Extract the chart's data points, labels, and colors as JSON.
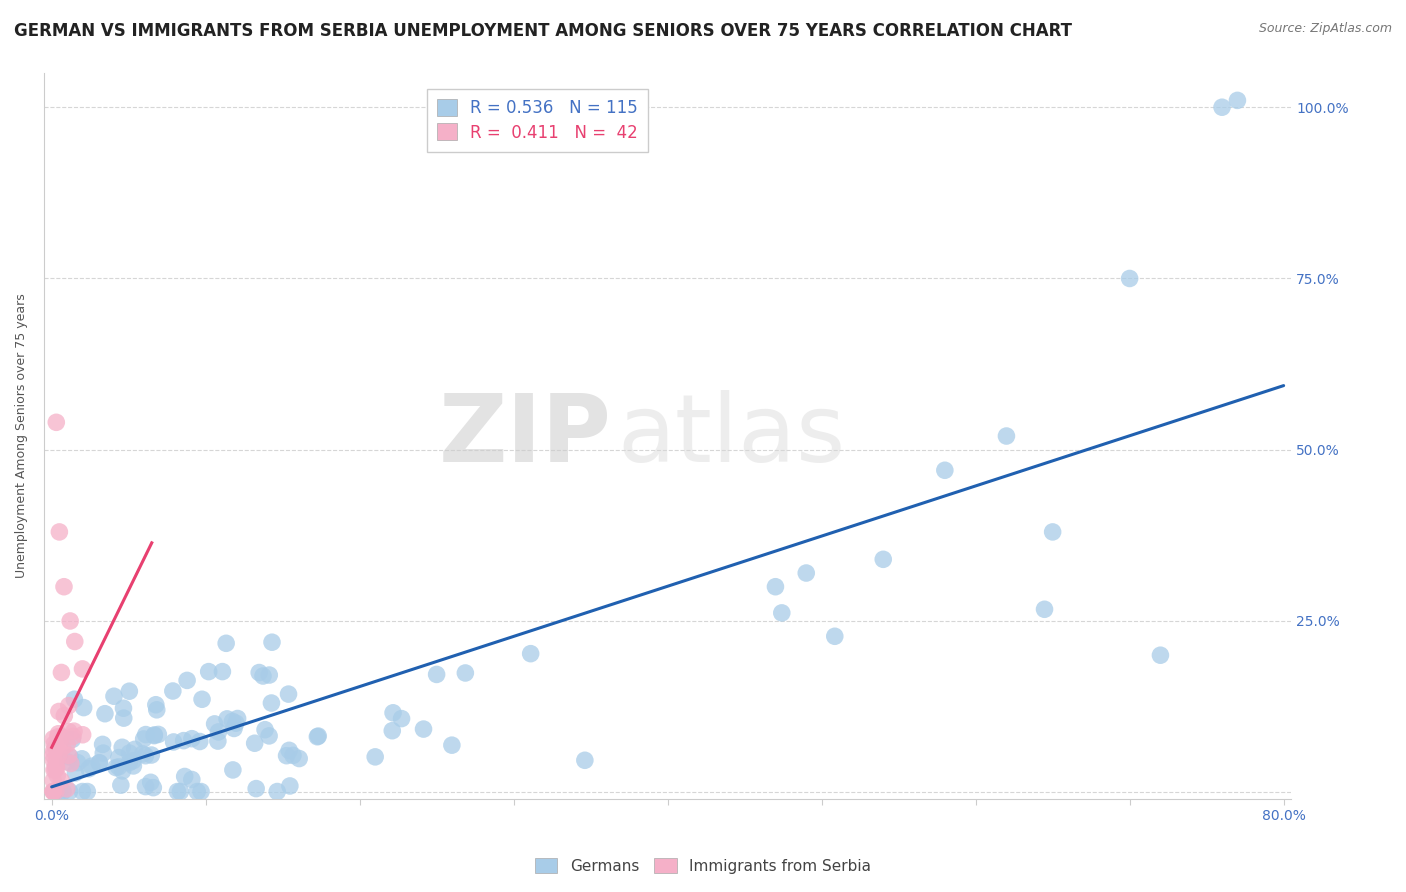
{
  "title": "GERMAN VS IMMIGRANTS FROM SERBIA UNEMPLOYMENT AMONG SENIORS OVER 75 YEARS CORRELATION CHART",
  "source": "Source: ZipAtlas.com",
  "ylabel": "Unemployment Among Seniors over 75 years",
  "x_min": 0.0,
  "x_max": 0.8,
  "y_min": 0.0,
  "y_max": 1.05,
  "x_ticks": [
    0.0,
    0.1,
    0.2,
    0.3,
    0.4,
    0.5,
    0.6,
    0.7,
    0.8
  ],
  "y_ticks": [
    0.0,
    0.25,
    0.5,
    0.75,
    1.0
  ],
  "german_color": "#a8cce8",
  "serbia_color": "#f5b0c8",
  "german_line_color": "#2060b0",
  "serbia_line_color": "#e84070",
  "watermark_zip": "ZIP",
  "watermark_atlas": "atlas",
  "R_german": 0.536,
  "N_german": 115,
  "R_serbia": 0.411,
  "N_serbia": 42,
  "title_fontsize": 12,
  "axis_label_fontsize": 9,
  "tick_fontsize": 10,
  "legend_fontsize": 12
}
